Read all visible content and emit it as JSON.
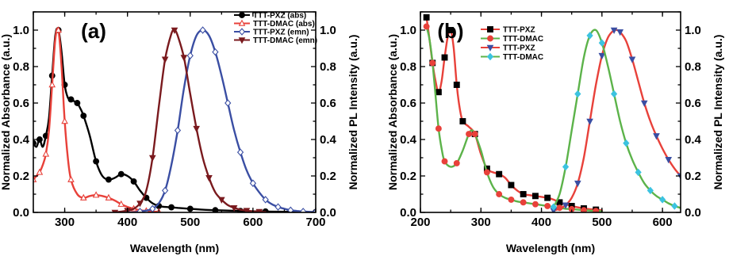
{
  "chart_data": [
    {
      "type": "line",
      "panel_label": "(a)",
      "xlabel": "Wavelength (nm)",
      "ylabel_left": "Normalized Absorbance (a.u.)",
      "ylabel_right": "Normalized PL Intensity (a.u.)",
      "xlim": [
        250,
        700
      ],
      "ylim": [
        0,
        1.1
      ],
      "xticks": [
        300,
        400,
        500,
        600,
        700
      ],
      "yticks": [
        0.0,
        0.2,
        0.4,
        0.6,
        0.8,
        1.0
      ],
      "ytick_labels": [
        "0.0",
        "0.2",
        "0.4",
        "0.6",
        "0.8",
        "1.0"
      ],
      "legend_position": "top-right",
      "series": [
        {
          "name": "TTT-PXZ (abs)",
          "color": "#000000",
          "marker": "circle-filled",
          "x": [
            250,
            255,
            260,
            265,
            270,
            275,
            280,
            285,
            290,
            295,
            300,
            305,
            310,
            315,
            320,
            325,
            330,
            340,
            350,
            360,
            370,
            380,
            390,
            400,
            410,
            420,
            430,
            440,
            450,
            460,
            470,
            480,
            500,
            520,
            540,
            560,
            580,
            600,
            620,
            640,
            660,
            680,
            700
          ],
          "y": [
            0.38,
            0.36,
            0.4,
            0.36,
            0.42,
            0.52,
            0.75,
            0.97,
            1.0,
            0.88,
            0.7,
            0.63,
            0.62,
            0.61,
            0.6,
            0.57,
            0.53,
            0.42,
            0.28,
            0.2,
            0.18,
            0.19,
            0.21,
            0.2,
            0.17,
            0.12,
            0.08,
            0.05,
            0.035,
            0.03,
            0.028,
            0.025,
            0.02,
            0.015,
            0.012,
            0.01,
            0.008,
            0.006,
            0.005,
            0.004,
            0.003,
            0.002,
            0.002
          ]
        },
        {
          "name": "TTT-DMAC (abs)",
          "color": "#e8413a",
          "marker": "triangle-open",
          "x": [
            250,
            255,
            260,
            265,
            270,
            275,
            280,
            285,
            290,
            295,
            300,
            305,
            310,
            320,
            330,
            340,
            350,
            360,
            370,
            380,
            390,
            400,
            410,
            420,
            430,
            440,
            450
          ],
          "y": [
            0.18,
            0.2,
            0.22,
            0.26,
            0.32,
            0.45,
            0.7,
            0.95,
            1.0,
            0.8,
            0.5,
            0.3,
            0.18,
            0.1,
            0.08,
            0.09,
            0.095,
            0.09,
            0.08,
            0.065,
            0.045,
            0.03,
            0.02,
            0.012,
            0.008,
            0.005,
            0.003
          ]
        },
        {
          "name": "TTT-PXZ (emn)",
          "color": "#3a4ea3",
          "marker": "diamond-open",
          "x": [
            400,
            410,
            420,
            430,
            440,
            450,
            460,
            470,
            480,
            490,
            500,
            510,
            520,
            530,
            540,
            550,
            560,
            570,
            580,
            590,
            600,
            610,
            620,
            630,
            640,
            650,
            660,
            670,
            680,
            690,
            700
          ],
          "y": [
            0.0,
            0.0,
            0.005,
            0.01,
            0.02,
            0.05,
            0.12,
            0.26,
            0.45,
            0.68,
            0.86,
            0.97,
            1.0,
            0.97,
            0.88,
            0.75,
            0.6,
            0.45,
            0.33,
            0.23,
            0.16,
            0.11,
            0.07,
            0.045,
            0.03,
            0.02,
            0.012,
            0.008,
            0.005,
            0.003,
            0.002
          ]
        },
        {
          "name": "TTT-DMAC (emn)",
          "color": "#7a1a1e",
          "marker": "triangle-down-filled",
          "x": [
            380,
            390,
            400,
            410,
            420,
            430,
            440,
            450,
            460,
            470,
            475,
            480,
            490,
            500,
            510,
            520,
            530,
            540,
            550,
            560,
            570,
            580,
            590,
            600,
            610,
            620
          ],
          "y": [
            0.0,
            0.005,
            0.01,
            0.02,
            0.05,
            0.12,
            0.3,
            0.58,
            0.84,
            0.98,
            1.0,
            0.97,
            0.85,
            0.65,
            0.46,
            0.3,
            0.19,
            0.11,
            0.07,
            0.04,
            0.025,
            0.015,
            0.01,
            0.006,
            0.004,
            0.002
          ]
        }
      ]
    },
    {
      "type": "line",
      "panel_label": "(b)",
      "xlabel": "Wavelength (nm)",
      "ylabel_left": "Normalized Absorbance (a.u.)",
      "ylabel_right": "Normalized PL Intensity (a.u.)",
      "xlim": [
        200,
        630
      ],
      "ylim": [
        0,
        1.1
      ],
      "xticks": [
        200,
        300,
        400,
        500,
        600
      ],
      "yticks": [
        0.0,
        0.2,
        0.4,
        0.6,
        0.8,
        1.0
      ],
      "ytick_labels": [
        "0.0",
        "0.2",
        "0.4",
        "0.6",
        "0.8",
        "1.0"
      ],
      "legend_position": "top-left",
      "series": [
        {
          "name": "TTT-PXZ",
          "color": "#e8413a",
          "marker": "square-filled",
          "marker_color": "#000000",
          "x": [
            210,
            215,
            220,
            225,
            230,
            235,
            240,
            245,
            250,
            255,
            260,
            265,
            270,
            280,
            290,
            300,
            310,
            320,
            330,
            340,
            350,
            360,
            370,
            380,
            390,
            400,
            410,
            420,
            430,
            440,
            450,
            460,
            470,
            480,
            490,
            500
          ],
          "y": [
            1.07,
            0.95,
            0.82,
            0.72,
            0.66,
            0.72,
            0.85,
            0.96,
            1.0,
            0.9,
            0.7,
            0.57,
            0.5,
            0.47,
            0.43,
            0.32,
            0.24,
            0.22,
            0.21,
            0.19,
            0.15,
            0.12,
            0.1,
            0.095,
            0.09,
            0.085,
            0.08,
            0.07,
            0.055,
            0.045,
            0.035,
            0.028,
            0.022,
            0.018,
            0.015,
            0.012
          ]
        },
        {
          "name": "TTT-DMAC",
          "color": "#5cb34a",
          "marker": "circle-filled",
          "marker_color": "#e8413a",
          "x": [
            210,
            215,
            220,
            225,
            230,
            235,
            240,
            250,
            260,
            270,
            280,
            285,
            290,
            300,
            310,
            320,
            330,
            340,
            350,
            360,
            370,
            380,
            390,
            400,
            410,
            420,
            430,
            440,
            450,
            460,
            470,
            480,
            490,
            500
          ],
          "y": [
            1.02,
            0.95,
            0.82,
            0.64,
            0.46,
            0.35,
            0.28,
            0.25,
            0.27,
            0.34,
            0.43,
            0.45,
            0.43,
            0.34,
            0.22,
            0.14,
            0.1,
            0.08,
            0.07,
            0.06,
            0.055,
            0.05,
            0.045,
            0.04,
            0.035,
            0.03,
            0.025,
            0.02,
            0.018,
            0.015,
            0.012,
            0.01,
            0.008,
            0.006
          ]
        },
        {
          "name": "TTT-PXZ",
          "color": "#e8413a",
          "marker": "triangle-down-filled",
          "marker_color": "#3a4ea3",
          "x": [
            420,
            430,
            440,
            450,
            460,
            470,
            480,
            490,
            500,
            510,
            520,
            525,
            530,
            540,
            550,
            560,
            570,
            580,
            590,
            600,
            610,
            620,
            630
          ],
          "y": [
            0.01,
            0.02,
            0.04,
            0.08,
            0.16,
            0.3,
            0.5,
            0.7,
            0.86,
            0.96,
            1.0,
            1.0,
            0.99,
            0.94,
            0.84,
            0.72,
            0.6,
            0.5,
            0.42,
            0.35,
            0.29,
            0.24,
            0.2
          ]
        },
        {
          "name": "TTT-DMAC",
          "color": "#5cb34a",
          "marker": "diamond-filled",
          "marker_color": "#3cc3e0",
          "x": [
            420,
            430,
            440,
            450,
            460,
            470,
            480,
            490,
            500,
            510,
            520,
            530,
            540,
            550,
            560,
            570,
            580,
            590,
            600,
            610,
            620,
            630
          ],
          "y": [
            0.03,
            0.1,
            0.25,
            0.45,
            0.65,
            0.85,
            0.97,
            1.0,
            0.93,
            0.8,
            0.65,
            0.5,
            0.38,
            0.29,
            0.22,
            0.16,
            0.12,
            0.09,
            0.07,
            0.05,
            0.035,
            0.025
          ]
        }
      ]
    }
  ]
}
